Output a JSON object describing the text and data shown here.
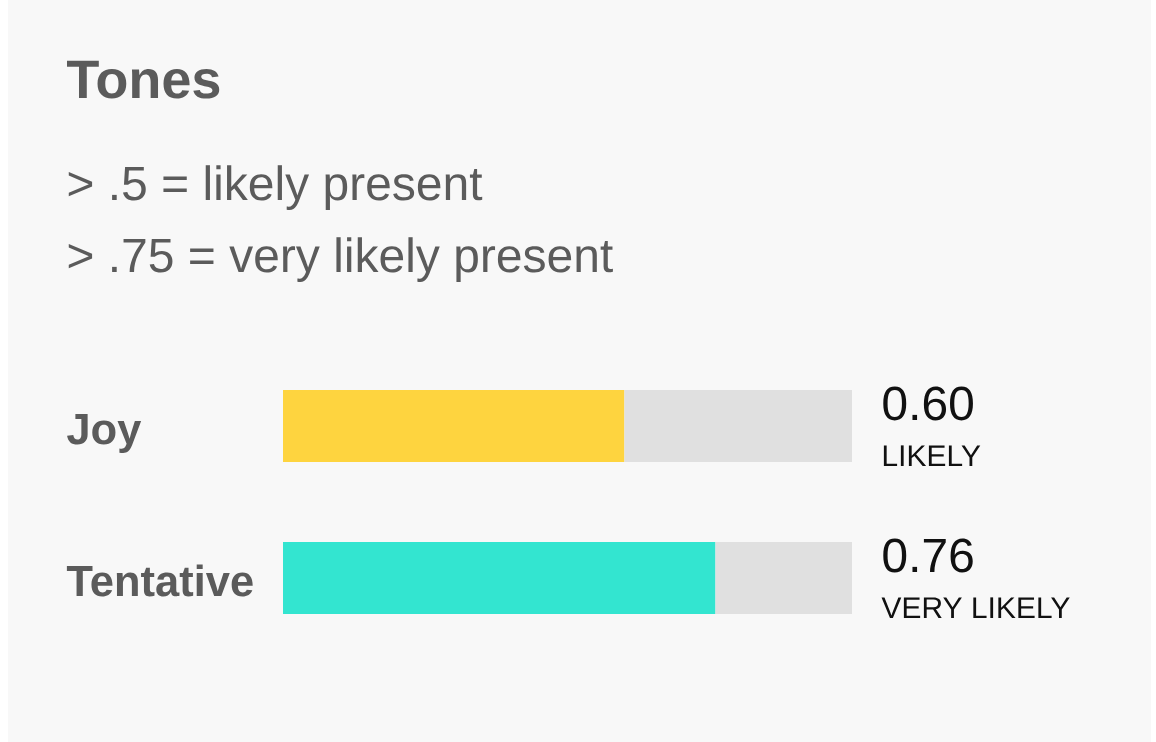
{
  "chart_data": {
    "type": "bar",
    "orientation": "horizontal",
    "stacked": true,
    "title": "Tones",
    "annotations": [
      "> .5 = likely present",
      "> .75 = very likely present",
      {
        "text": "LIKELY",
        "x": 1,
        "y": "Joy"
      },
      {
        "text": "VERY LIKELY",
        "x": 1,
        "y": "Tentative"
      }
    ],
    "categories": [
      "Joy",
      "Tentative"
    ],
    "series": [
      {
        "colors": [
          "#fed43f",
          "#33e5d0"
        ],
        "values": [
          0.6,
          0.76
        ],
        "value_labels": [
          "0.60",
          "0.76"
        ]
      },
      {
        "color": "#e0e0e0",
        "values": [
          0.4,
          0.24
        ]
      }
    ],
    "xlim": [
      0,
      1
    ],
    "tick_labels": "y"
  }
}
